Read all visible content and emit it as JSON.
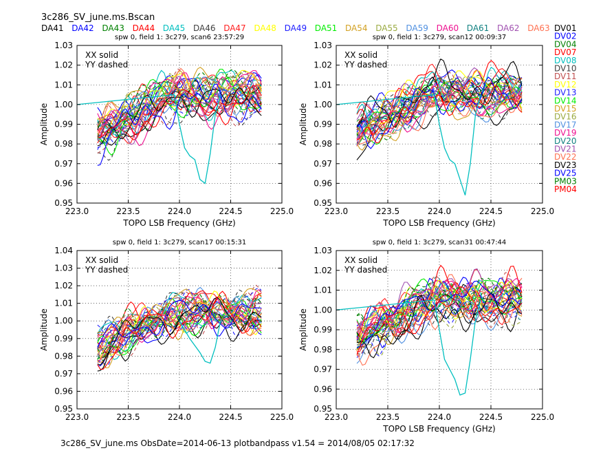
{
  "figure": {
    "title": "3c286_SV_june.ms.Bscan",
    "footer": "3c286_SV_june.ms  ObsDate=2014-06-13   plotbandpass v1.54 = 2014/08/05 02:17:32"
  },
  "legend_top": [
    {
      "name": "DA41",
      "color": "#000000"
    },
    {
      "name": "DA42",
      "color": "#0000ff"
    },
    {
      "name": "DA43",
      "color": "#008000"
    },
    {
      "name": "DA44",
      "color": "#ff0000"
    },
    {
      "name": "DA45",
      "color": "#00bfbf"
    },
    {
      "name": "DA46",
      "color": "#404040"
    },
    {
      "name": "DA47",
      "color": "#ff2020"
    },
    {
      "name": "DA48",
      "color": "#ffff00"
    },
    {
      "name": "DA49",
      "color": "#2020ff"
    },
    {
      "name": "DA51",
      "color": "#00ee00"
    },
    {
      "name": "DA54",
      "color": "#d2a020"
    },
    {
      "name": "DA55",
      "color": "#9aaa40"
    },
    {
      "name": "DA59",
      "color": "#5090e0"
    },
    {
      "name": "DA60",
      "color": "#ee1090"
    },
    {
      "name": "DA61",
      "color": "#108080"
    },
    {
      "name": "DA62",
      "color": "#a050b0"
    },
    {
      "name": "DA63",
      "color": "#ff7050"
    }
  ],
  "legend_right": [
    {
      "name": "DV01",
      "color": "#000000"
    },
    {
      "name": "DV02",
      "color": "#0000ff"
    },
    {
      "name": "DV04",
      "color": "#008000"
    },
    {
      "name": "DV07",
      "color": "#ff0000"
    },
    {
      "name": "DV08",
      "color": "#00bfbf"
    },
    {
      "name": "DV10",
      "color": "#404040"
    },
    {
      "name": "DV11",
      "color": "#c05050"
    },
    {
      "name": "DV12",
      "color": "#ffff00"
    },
    {
      "name": "DV13",
      "color": "#2020ff"
    },
    {
      "name": "DV14",
      "color": "#00ee00"
    },
    {
      "name": "DV15",
      "color": "#d2a020"
    },
    {
      "name": "DV16",
      "color": "#9aaa40"
    },
    {
      "name": "DV17",
      "color": "#5090e0"
    },
    {
      "name": "DV19",
      "color": "#ee1090"
    },
    {
      "name": "DV20",
      "color": "#108080"
    },
    {
      "name": "DV21",
      "color": "#a050b0"
    },
    {
      "name": "DV22",
      "color": "#ff7050"
    },
    {
      "name": "DV23",
      "color": "#000000"
    },
    {
      "name": "DV25",
      "color": "#0000ff"
    },
    {
      "name": "PM03",
      "color": "#008000"
    },
    {
      "name": "PM04",
      "color": "#ff0000"
    }
  ],
  "chart_data": [
    {
      "type": "line",
      "title": "spw 0,  field 1: 3c279,  scan6  23:57:29",
      "xlabel": "TOPO LSB Frequency (GHz)",
      "ylabel": "Amplitude",
      "xlim": [
        223.0,
        225.0
      ],
      "ylim": [
        0.95,
        1.03
      ],
      "xticks": [
        "223.0",
        "223.5",
        "224.0",
        "224.5",
        "225.0"
      ],
      "yticks": [
        "0.95",
        "0.96",
        "0.97",
        "0.98",
        "0.99",
        "1.00",
        "1.01",
        "1.02",
        "1.03"
      ],
      "annotation_solid": "XX solid",
      "annotation_dashed": "YY dashed",
      "grid": true,
      "x_range": [
        223.2,
        224.8
      ],
      "outlier": {
        "color": "#00bfbf",
        "x": [
          223.0,
          223.95,
          224.0,
          224.05,
          224.1,
          224.15,
          224.2,
          224.25,
          224.3,
          224.35,
          224.4
        ],
        "y": [
          1.0,
          1.005,
          0.99,
          0.978,
          0.974,
          0.972,
          0.962,
          0.96,
          0.975,
          0.995,
          1.005
        ]
      }
    },
    {
      "type": "line",
      "title": "spw 0,  field 1: 3c279,  scan12  00:09:37",
      "xlabel": "TOPO LSB Frequency (GHz)",
      "ylabel": "Amplitude",
      "xlim": [
        223.0,
        225.0
      ],
      "ylim": [
        0.95,
        1.03
      ],
      "xticks": [
        "223.0",
        "223.5",
        "224.0",
        "224.5",
        "225.0"
      ],
      "yticks": [
        "0.95",
        "0.96",
        "0.97",
        "0.98",
        "0.99",
        "1.00",
        "1.01",
        "1.02",
        "1.03"
      ],
      "annotation_solid": "XX solid",
      "annotation_dashed": "YY dashed",
      "grid": true,
      "x_range": [
        223.2,
        224.8
      ],
      "outlier": {
        "color": "#00bfbf",
        "x": [
          223.0,
          223.95,
          224.0,
          224.05,
          224.1,
          224.15,
          224.2,
          224.25,
          224.3,
          224.35,
          224.4
        ],
        "y": [
          1.0,
          1.005,
          0.99,
          0.978,
          0.972,
          0.97,
          0.962,
          0.954,
          0.97,
          0.995,
          1.005
        ]
      }
    },
    {
      "type": "line",
      "title": "spw 0,  field 1: 3c279,  scan17  00:15:31",
      "xlabel": "",
      "ylabel": "Amplitude",
      "xlim": [
        223.0,
        225.0
      ],
      "ylim": [
        0.95,
        1.04
      ],
      "xticks": [
        "223.0",
        "223.5",
        "224.0",
        "224.5",
        "225.0"
      ],
      "yticks": [
        "0.95",
        "0.96",
        "0.97",
        "0.98",
        "0.99",
        "1.00",
        "1.01",
        "1.02",
        "1.03",
        "1.04"
      ],
      "annotation_solid": "XX solid",
      "annotation_dashed": "YY dashed",
      "grid": true,
      "x_range": [
        223.2,
        224.8
      ],
      "outlier": {
        "color": "#00bfbf",
        "x": [
          224.0,
          224.1,
          224.2,
          224.25,
          224.3,
          224.35,
          224.4
        ],
        "y": [
          1.0,
          0.99,
          0.982,
          0.977,
          0.976,
          0.985,
          1.0
        ]
      }
    },
    {
      "type": "line",
      "title": "spw 0,  field 1: 3c279,  scan31  00:47:44",
      "xlabel": "TOPO LSB Frequency (GHz)",
      "ylabel": "Amplitude",
      "xlim": [
        223.0,
        225.0
      ],
      "ylim": [
        0.95,
        1.03
      ],
      "xticks": [
        "223.0",
        "223.5",
        "224.0",
        "224.5",
        "225.0"
      ],
      "yticks": [
        "0.95",
        "0.96",
        "0.97",
        "0.98",
        "0.99",
        "1.00",
        "1.01",
        "1.02",
        "1.03"
      ],
      "annotation_solid": "XX solid",
      "annotation_dashed": "YY dashed",
      "grid": true,
      "x_range": [
        223.2,
        224.8
      ],
      "outlier": {
        "color": "#00bfbf",
        "x": [
          223.0,
          223.95,
          224.0,
          224.05,
          224.1,
          224.15,
          224.2,
          224.25,
          224.3,
          224.35,
          224.4
        ],
        "y": [
          1.0,
          1.005,
          0.99,
          0.975,
          0.97,
          0.965,
          0.957,
          0.958,
          0.975,
          0.995,
          1.005
        ]
      }
    }
  ]
}
